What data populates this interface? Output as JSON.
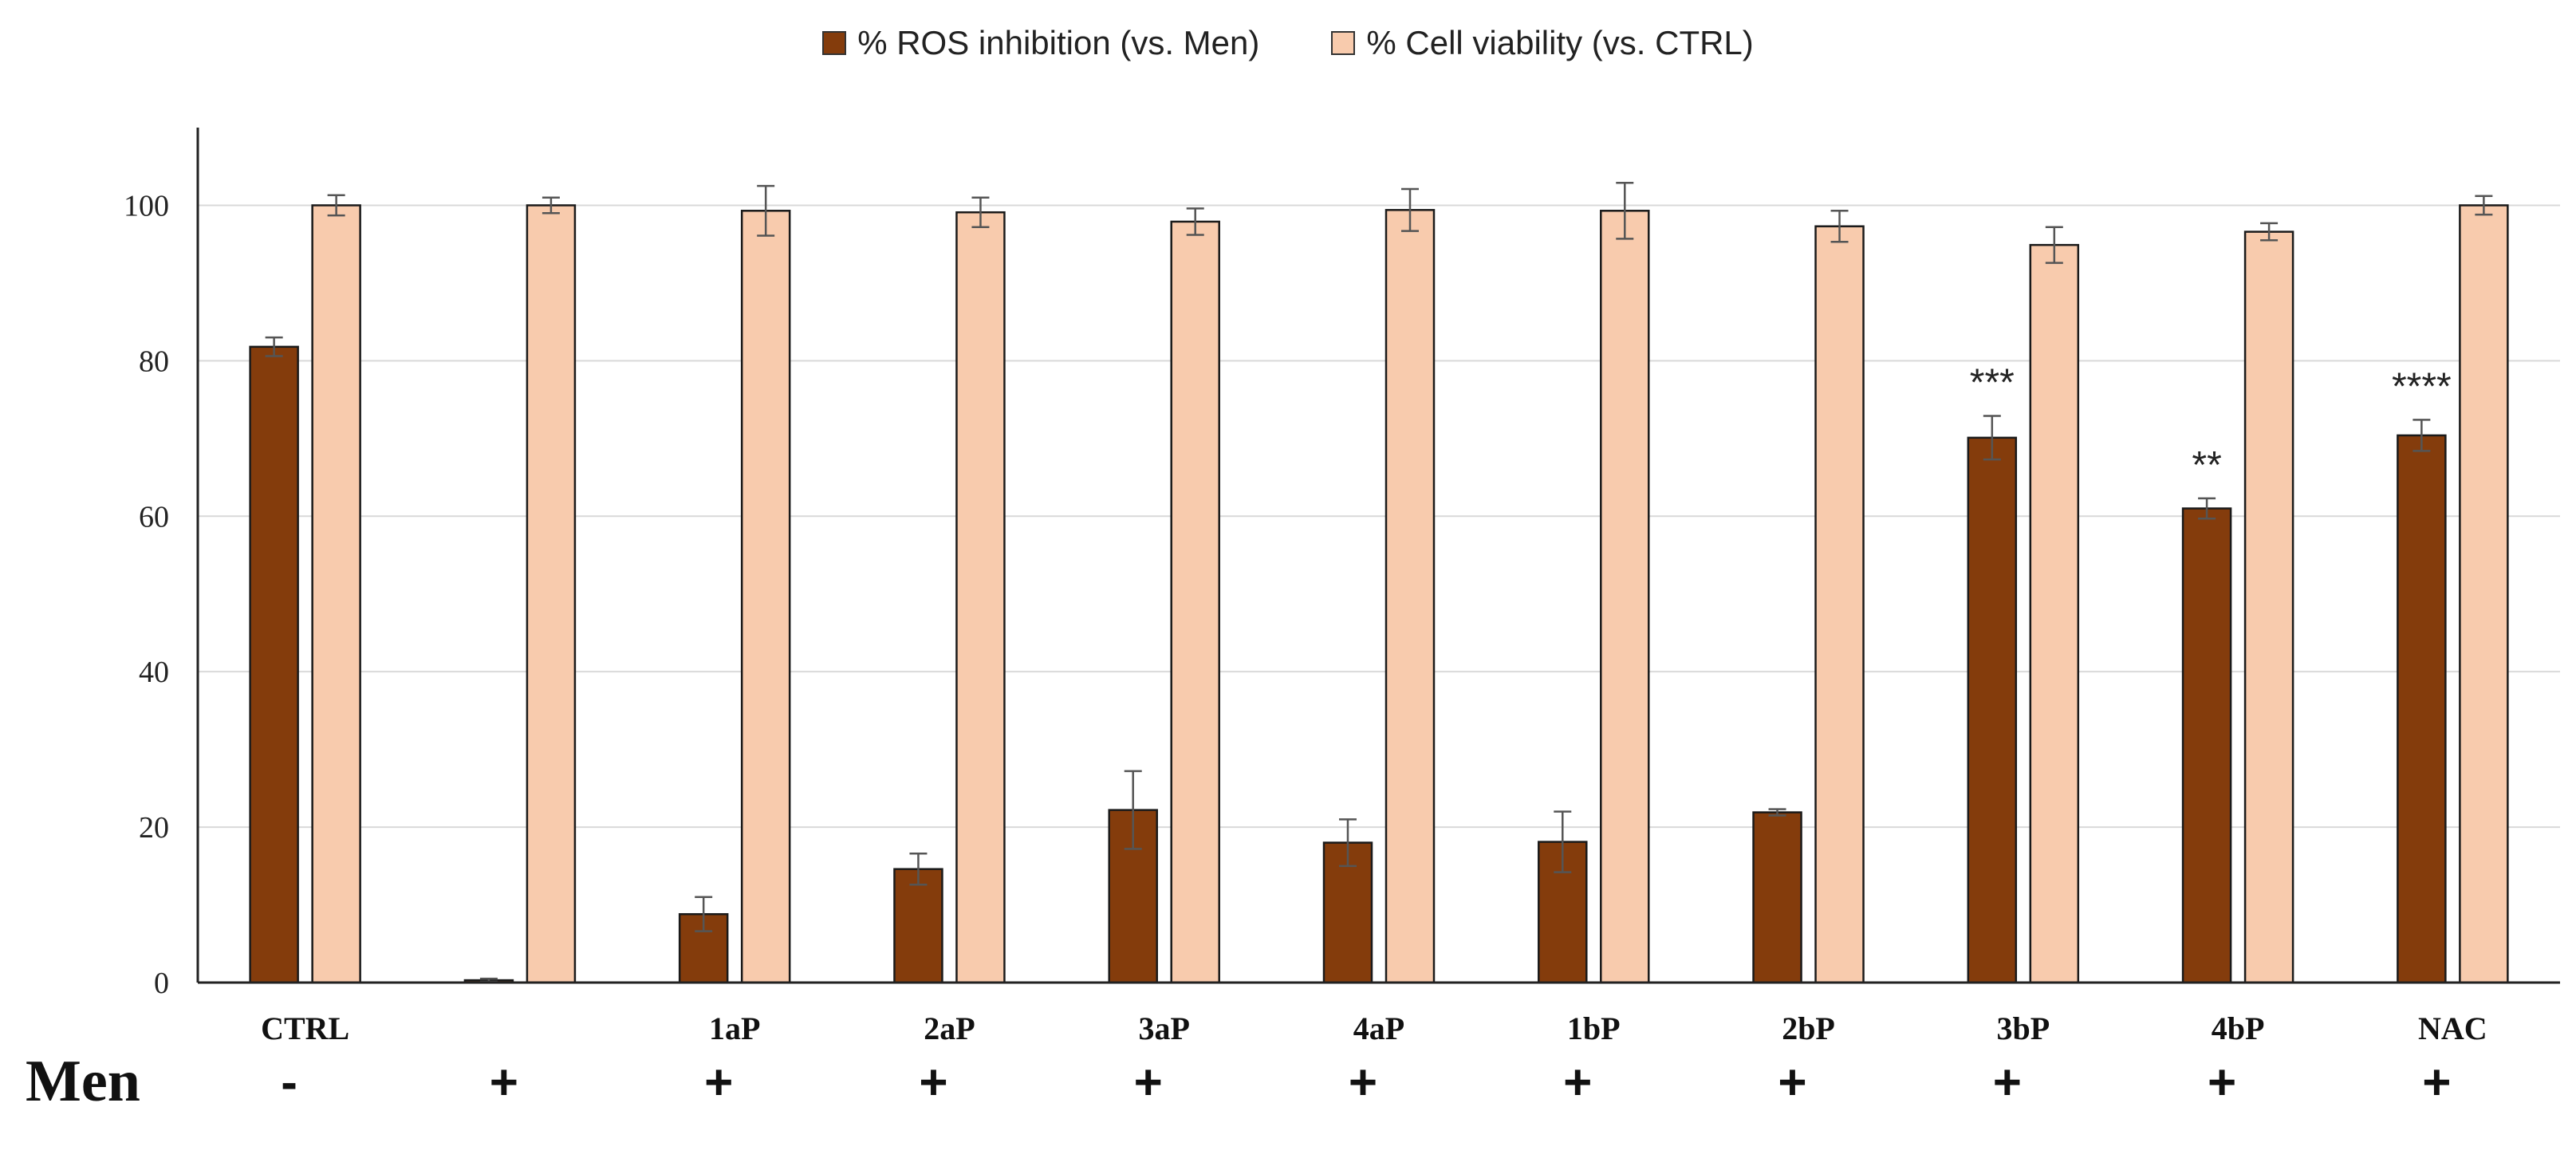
{
  "chart_data": {
    "type": "bar",
    "title": "",
    "xlabel": "",
    "ylabel": "",
    "ylim": [
      0,
      110
    ],
    "yticks": [
      0,
      20,
      40,
      60,
      80,
      100
    ],
    "grid": true,
    "legend_position": "top-center",
    "categories": [
      "CTRL",
      "",
      "1aP",
      "2aP",
      "3aP",
      "4aP",
      "1bP",
      "2bP",
      "3bP",
      "4bP",
      "NAC"
    ],
    "series": [
      {
        "name": "% ROS inhibition (vs. Men)",
        "color": "#843c0c",
        "values": [
          81.8,
          0.3,
          8.8,
          14.6,
          22.2,
          18.0,
          18.1,
          21.9,
          70.1,
          61.0,
          70.4
        ],
        "errors": [
          1.2,
          0.2,
          2.2,
          2.0,
          5.0,
          3.0,
          3.9,
          0.4,
          2.8,
          1.3,
          2.0
        ]
      },
      {
        "name": "% Cell viability (vs. CTRL)",
        "color": "#f8cbad",
        "values": [
          100,
          100,
          99.3,
          99.1,
          97.9,
          99.4,
          99.3,
          97.3,
          94.9,
          96.6,
          100
        ],
        "errors": [
          1.3,
          1.0,
          3.2,
          1.9,
          1.7,
          2.7,
          3.6,
          2.0,
          2.3,
          1.1,
          1.2
        ]
      }
    ],
    "significance": [
      "",
      "",
      "",
      "",
      "",
      "",
      "",
      "",
      "***",
      "**",
      "****"
    ],
    "row_label": "Men",
    "men_treatment": [
      "-",
      "+",
      "+",
      "+",
      "+",
      "+",
      "+",
      "+",
      "+",
      "+",
      "+"
    ]
  }
}
